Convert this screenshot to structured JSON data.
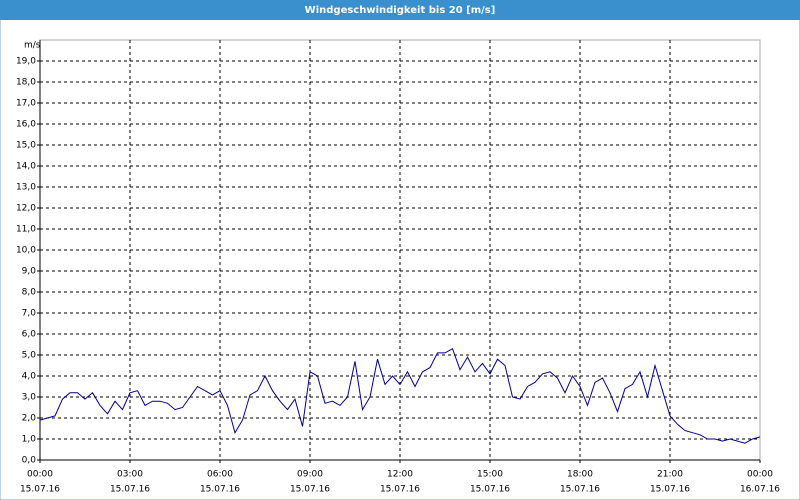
{
  "chart_data": {
    "type": "line",
    "title": "Windgeschwindigkeit bis 20 [m/s]",
    "y_label": "m/s",
    "color": "#00008b",
    "grid": true,
    "x": [
      0,
      0.25,
      0.5,
      0.75,
      1,
      1.25,
      1.5,
      1.75,
      2,
      2.25,
      2.5,
      2.75,
      3,
      3.25,
      3.5,
      3.75,
      4,
      4.25,
      4.5,
      4.75,
      5,
      5.25,
      5.5,
      5.75,
      6,
      6.25,
      6.5,
      6.75,
      7,
      7.25,
      7.5,
      7.75,
      8,
      8.25,
      8.5,
      8.75,
      9,
      9.25,
      9.5,
      9.75,
      10,
      10.25,
      10.5,
      10.75,
      11,
      11.25,
      11.5,
      11.75,
      12,
      12.25,
      12.5,
      12.75,
      13,
      13.25,
      13.5,
      13.75,
      14,
      14.25,
      14.5,
      14.75,
      15,
      15.25,
      15.5,
      15.75,
      16,
      16.25,
      16.5,
      16.75,
      17,
      17.25,
      17.5,
      17.75,
      18,
      18.25,
      18.5,
      18.75,
      19,
      19.25,
      19.5,
      19.75,
      20,
      20.25,
      20.5,
      20.75,
      21,
      21.25,
      21.5,
      21.75,
      22,
      22.25,
      22.5,
      22.75,
      23,
      23.25,
      23.5,
      23.75,
      24
    ],
    "values": [
      1.9,
      2.0,
      2.1,
      2.9,
      3.2,
      3.2,
      2.9,
      3.2,
      2.6,
      2.2,
      2.8,
      2.4,
      3.2,
      3.3,
      2.6,
      2.8,
      2.8,
      2.7,
      2.4,
      2.5,
      3.0,
      3.5,
      3.3,
      3.1,
      3.3,
      2.6,
      1.3,
      1.9,
      3.1,
      3.3,
      4.0,
      3.3,
      2.8,
      2.4,
      2.9,
      1.6,
      4.2,
      4.0,
      2.7,
      2.8,
      2.6,
      3.0,
      4.7,
      2.4,
      3.0,
      4.8,
      3.6,
      4.0,
      3.6,
      4.2,
      3.5,
      4.2,
      4.4,
      5.1,
      5.1,
      5.3,
      4.3,
      4.9,
      4.2,
      4.6,
      4.1,
      4.8,
      4.5,
      3.0,
      2.9,
      3.5,
      3.7,
      4.1,
      4.2,
      3.9,
      3.2,
      4.0,
      3.5,
      2.6,
      3.7,
      3.9,
      3.2,
      2.3,
      3.4,
      3.6,
      4.2,
      3.0,
      4.5,
      3.3,
      2.1,
      1.7,
      1.4,
      1.3,
      1.2,
      1.0,
      1.0,
      0.9,
      1.0,
      0.9,
      0.8,
      1.0,
      1.1
    ],
    "xlim": [
      0,
      24
    ],
    "xticks": [
      {
        "value": 0,
        "label": "00:00"
      },
      {
        "value": 3,
        "label": "03:00"
      },
      {
        "value": 6,
        "label": "06:00"
      },
      {
        "value": 9,
        "label": "09:00"
      },
      {
        "value": 12,
        "label": "12:00"
      },
      {
        "value": 15,
        "label": "15:00"
      },
      {
        "value": 18,
        "label": "18:00"
      },
      {
        "value": 21,
        "label": "21:00"
      },
      {
        "value": 24,
        "label": "00:00"
      }
    ],
    "xtick_dates": [
      "15.07.16",
      "15.07.16",
      "15.07.16",
      "15.07.16",
      "15.07.16",
      "15.07.16",
      "15.07.16",
      "15.07.16",
      "16.07.16"
    ],
    "ylim": [
      0,
      20
    ],
    "yticks": [
      {
        "value": 0,
        "label": "0,0"
      },
      {
        "value": 1,
        "label": "1,0"
      },
      {
        "value": 2,
        "label": "2,0"
      },
      {
        "value": 3,
        "label": "3,0"
      },
      {
        "value": 4,
        "label": "4,0"
      },
      {
        "value": 5,
        "label": "5,0"
      },
      {
        "value": 6,
        "label": "6,0"
      },
      {
        "value": 7,
        "label": "7,0"
      },
      {
        "value": 8,
        "label": "8,0"
      },
      {
        "value": 9,
        "label": "9,0"
      },
      {
        "value": 10,
        "label": "10,0"
      },
      {
        "value": 11,
        "label": "11,0"
      },
      {
        "value": 12,
        "label": "12,0"
      },
      {
        "value": 13,
        "label": "13,0"
      },
      {
        "value": 14,
        "label": "14,0"
      },
      {
        "value": 15,
        "label": "15,0"
      },
      {
        "value": 16,
        "label": "16,0"
      },
      {
        "value": 17,
        "label": "17,0"
      },
      {
        "value": 18,
        "label": "18,0"
      },
      {
        "value": 19,
        "label": "19,0"
      }
    ]
  }
}
